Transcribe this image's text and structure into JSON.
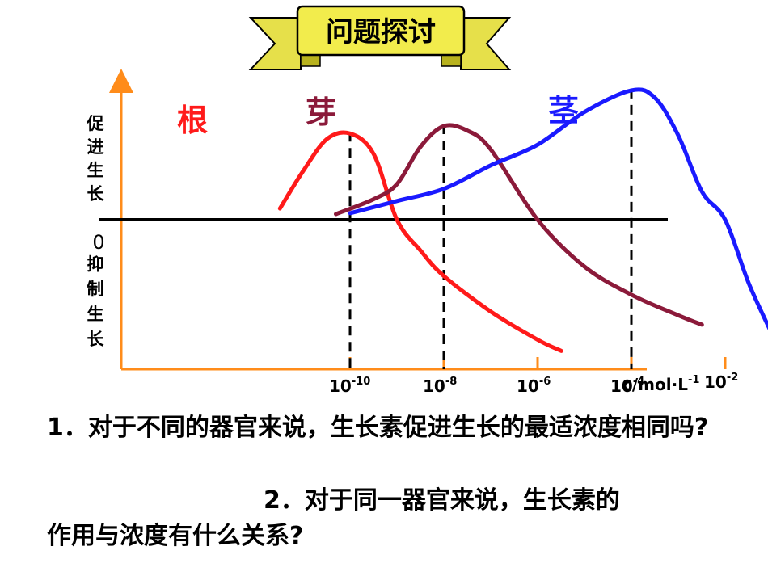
{
  "banner": {
    "text": "问题探讨"
  },
  "chart_data": {
    "type": "line",
    "title": "",
    "xlabel": "c/mol·L",
    "xlabel_sup": "-1",
    "ylabel_top": [
      "促",
      "进",
      "生",
      "长"
    ],
    "ylabel_zero": "0",
    "ylabel_bottom": [
      "抑",
      "制",
      "生",
      "长"
    ],
    "x_scale": "log",
    "x_ticks": [
      {
        "base": "10",
        "exp": "-10",
        "value": 1e-10
      },
      {
        "base": "10",
        "exp": "-8",
        "value": 1e-08
      },
      {
        "base": "10",
        "exp": "-6",
        "value": 1e-06
      },
      {
        "base": "10",
        "exp": "-4",
        "value": 0.0001
      },
      {
        "base": "10",
        "exp": "-2",
        "value": 0.01
      }
    ],
    "xlim": [
      5e-12,
      0.1
    ],
    "ylim": [
      -1.45,
      1.4
    ],
    "series": [
      {
        "name": "根",
        "color": "#ff1a1a",
        "x": [
          3.2e-12,
          1e-11,
          3.2e-11,
          1e-10,
          3.2e-10,
          1e-09,
          3.2e-09,
          1e-08,
          1e-07,
          1e-06,
          3.2e-06
        ],
        "y": [
          0.12,
          0.52,
          0.86,
          0.92,
          0.7,
          0.0,
          -0.33,
          -0.6,
          -0.98,
          -1.28,
          -1.4
        ],
        "optimum": 1e-10
      },
      {
        "name": "芽",
        "color": "#8b1a3a",
        "x": [
          5e-11,
          3.2e-10,
          1e-09,
          3.2e-09,
          1e-08,
          3.2e-08,
          1e-07,
          1e-06,
          1e-05,
          0.0001,
          0.001,
          0.0032
        ],
        "y": [
          0.06,
          0.22,
          0.38,
          0.78,
          1.0,
          0.95,
          0.75,
          0.0,
          -0.5,
          -0.8,
          -1.02,
          -1.12
        ],
        "optimum": 1e-08
      },
      {
        "name": "茎",
        "color": "#1a1aff",
        "x": [
          1e-10,
          1e-09,
          1e-08,
          1e-07,
          1e-06,
          1e-05,
          0.0001,
          0.00032,
          0.001,
          0.0032,
          0.01,
          0.032,
          0.1
        ],
        "y": [
          0.07,
          0.2,
          0.33,
          0.58,
          0.8,
          1.15,
          1.38,
          1.3,
          0.9,
          0.3,
          0.0,
          -0.68,
          -1.22
        ],
        "optimum": 0.0001
      }
    ],
    "grid": false,
    "legend": "none"
  },
  "questions": {
    "q1": "1．对于不同的器官来说，生长素促进生长的最适浓度相同吗?",
    "q2_line1": "2．对于同一器官来说，生长素的",
    "q2_line2": "作用与浓度有什么关系?"
  }
}
